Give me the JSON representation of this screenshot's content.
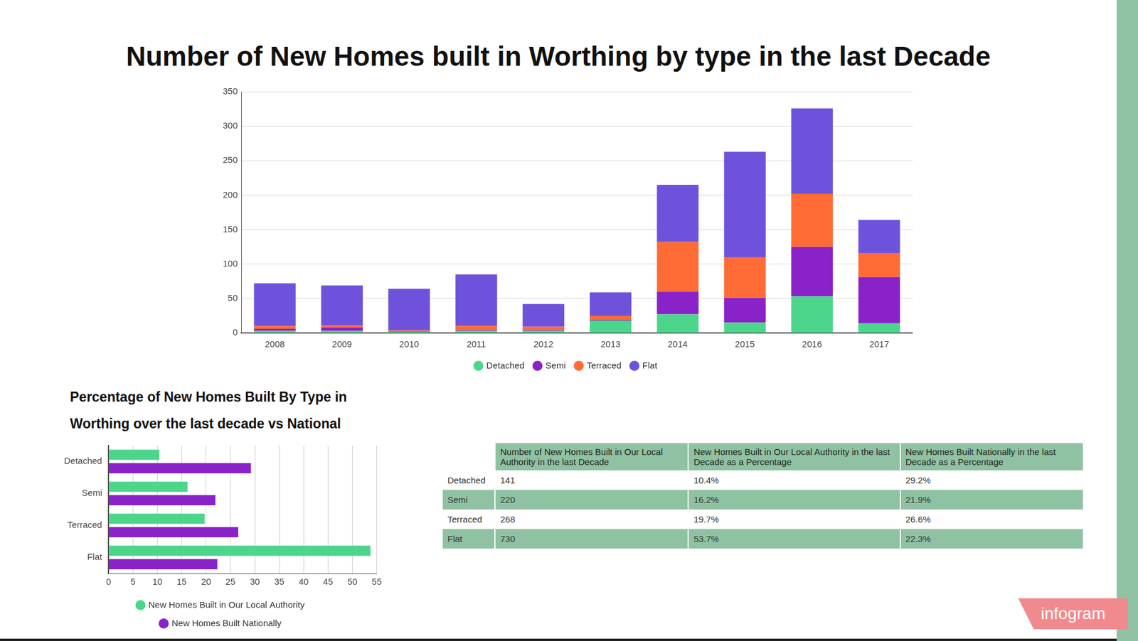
{
  "chart_data": [
    {
      "type": "bar",
      "title": "Number of New Homes built in Worthing by type in the last Decade",
      "categories": [
        "2008",
        "2009",
        "2010",
        "2011",
        "2012",
        "2013",
        "2014",
        "2015",
        "2016",
        "2017"
      ],
      "series": [
        {
          "name": "Detached",
          "color": "#4cd68c",
          "values": [
            3,
            3,
            2,
            3,
            3,
            18,
            27,
            15,
            53,
            14
          ]
        },
        {
          "name": "Semi",
          "color": "#8a22c9",
          "values": [
            3,
            5,
            1,
            1,
            1,
            1,
            33,
            36,
            72,
            67
          ]
        },
        {
          "name": "Terraced",
          "color": "#ff6b35",
          "values": [
            4,
            3,
            1,
            6,
            5,
            6,
            72,
            59,
            77,
            35
          ]
        },
        {
          "name": "Flat",
          "color": "#6e52dc",
          "values": [
            62,
            58,
            60,
            75,
            33,
            34,
            83,
            153,
            124,
            48
          ]
        }
      ],
      "ylim": [
        0,
        350
      ],
      "yticks": [
        0,
        50,
        100,
        150,
        200,
        250,
        300,
        350
      ],
      "grid": true,
      "stacked": true,
      "legend": "bottom"
    },
    {
      "type": "bar",
      "orientation": "horizontal",
      "title": "Percentage of New Homes Built By Type in Worthing over the last decade vs National",
      "categories": [
        "Detached",
        "Semi",
        "Terraced",
        "Flat"
      ],
      "series": [
        {
          "name": "New Homes Built in Our Local Authority",
          "color": "#4cd68c",
          "values": [
            10.4,
            16.2,
            19.7,
            53.7
          ]
        },
        {
          "name": "New Homes Built Nationally",
          "color": "#8a22c9",
          "values": [
            29.2,
            21.9,
            26.6,
            22.3
          ]
        }
      ],
      "xlim": [
        0,
        55
      ],
      "xticks": [
        0,
        5,
        10,
        15,
        20,
        25,
        30,
        35,
        40,
        45,
        50,
        55
      ],
      "grid": true,
      "legend": "bottom"
    }
  ],
  "table": {
    "header": [
      "Number of New Homes Built in Our Local Authority in the last Decade",
      "New Homes Built in Our Local Authority in the last Decade as a Percentage",
      "New Homes Built Nationally in the last Decade as a Percentage"
    ],
    "rows": [
      [
        "Detached",
        "141",
        "10.4%",
        "29.2%"
      ],
      [
        "Semi",
        "220",
        "16.2%",
        "21.9%"
      ],
      [
        "Terraced",
        "268",
        "19.7%",
        "26.6%"
      ],
      [
        "Flat",
        "730",
        "53.7%",
        "22.3%"
      ]
    ]
  },
  "badge": "infogram"
}
